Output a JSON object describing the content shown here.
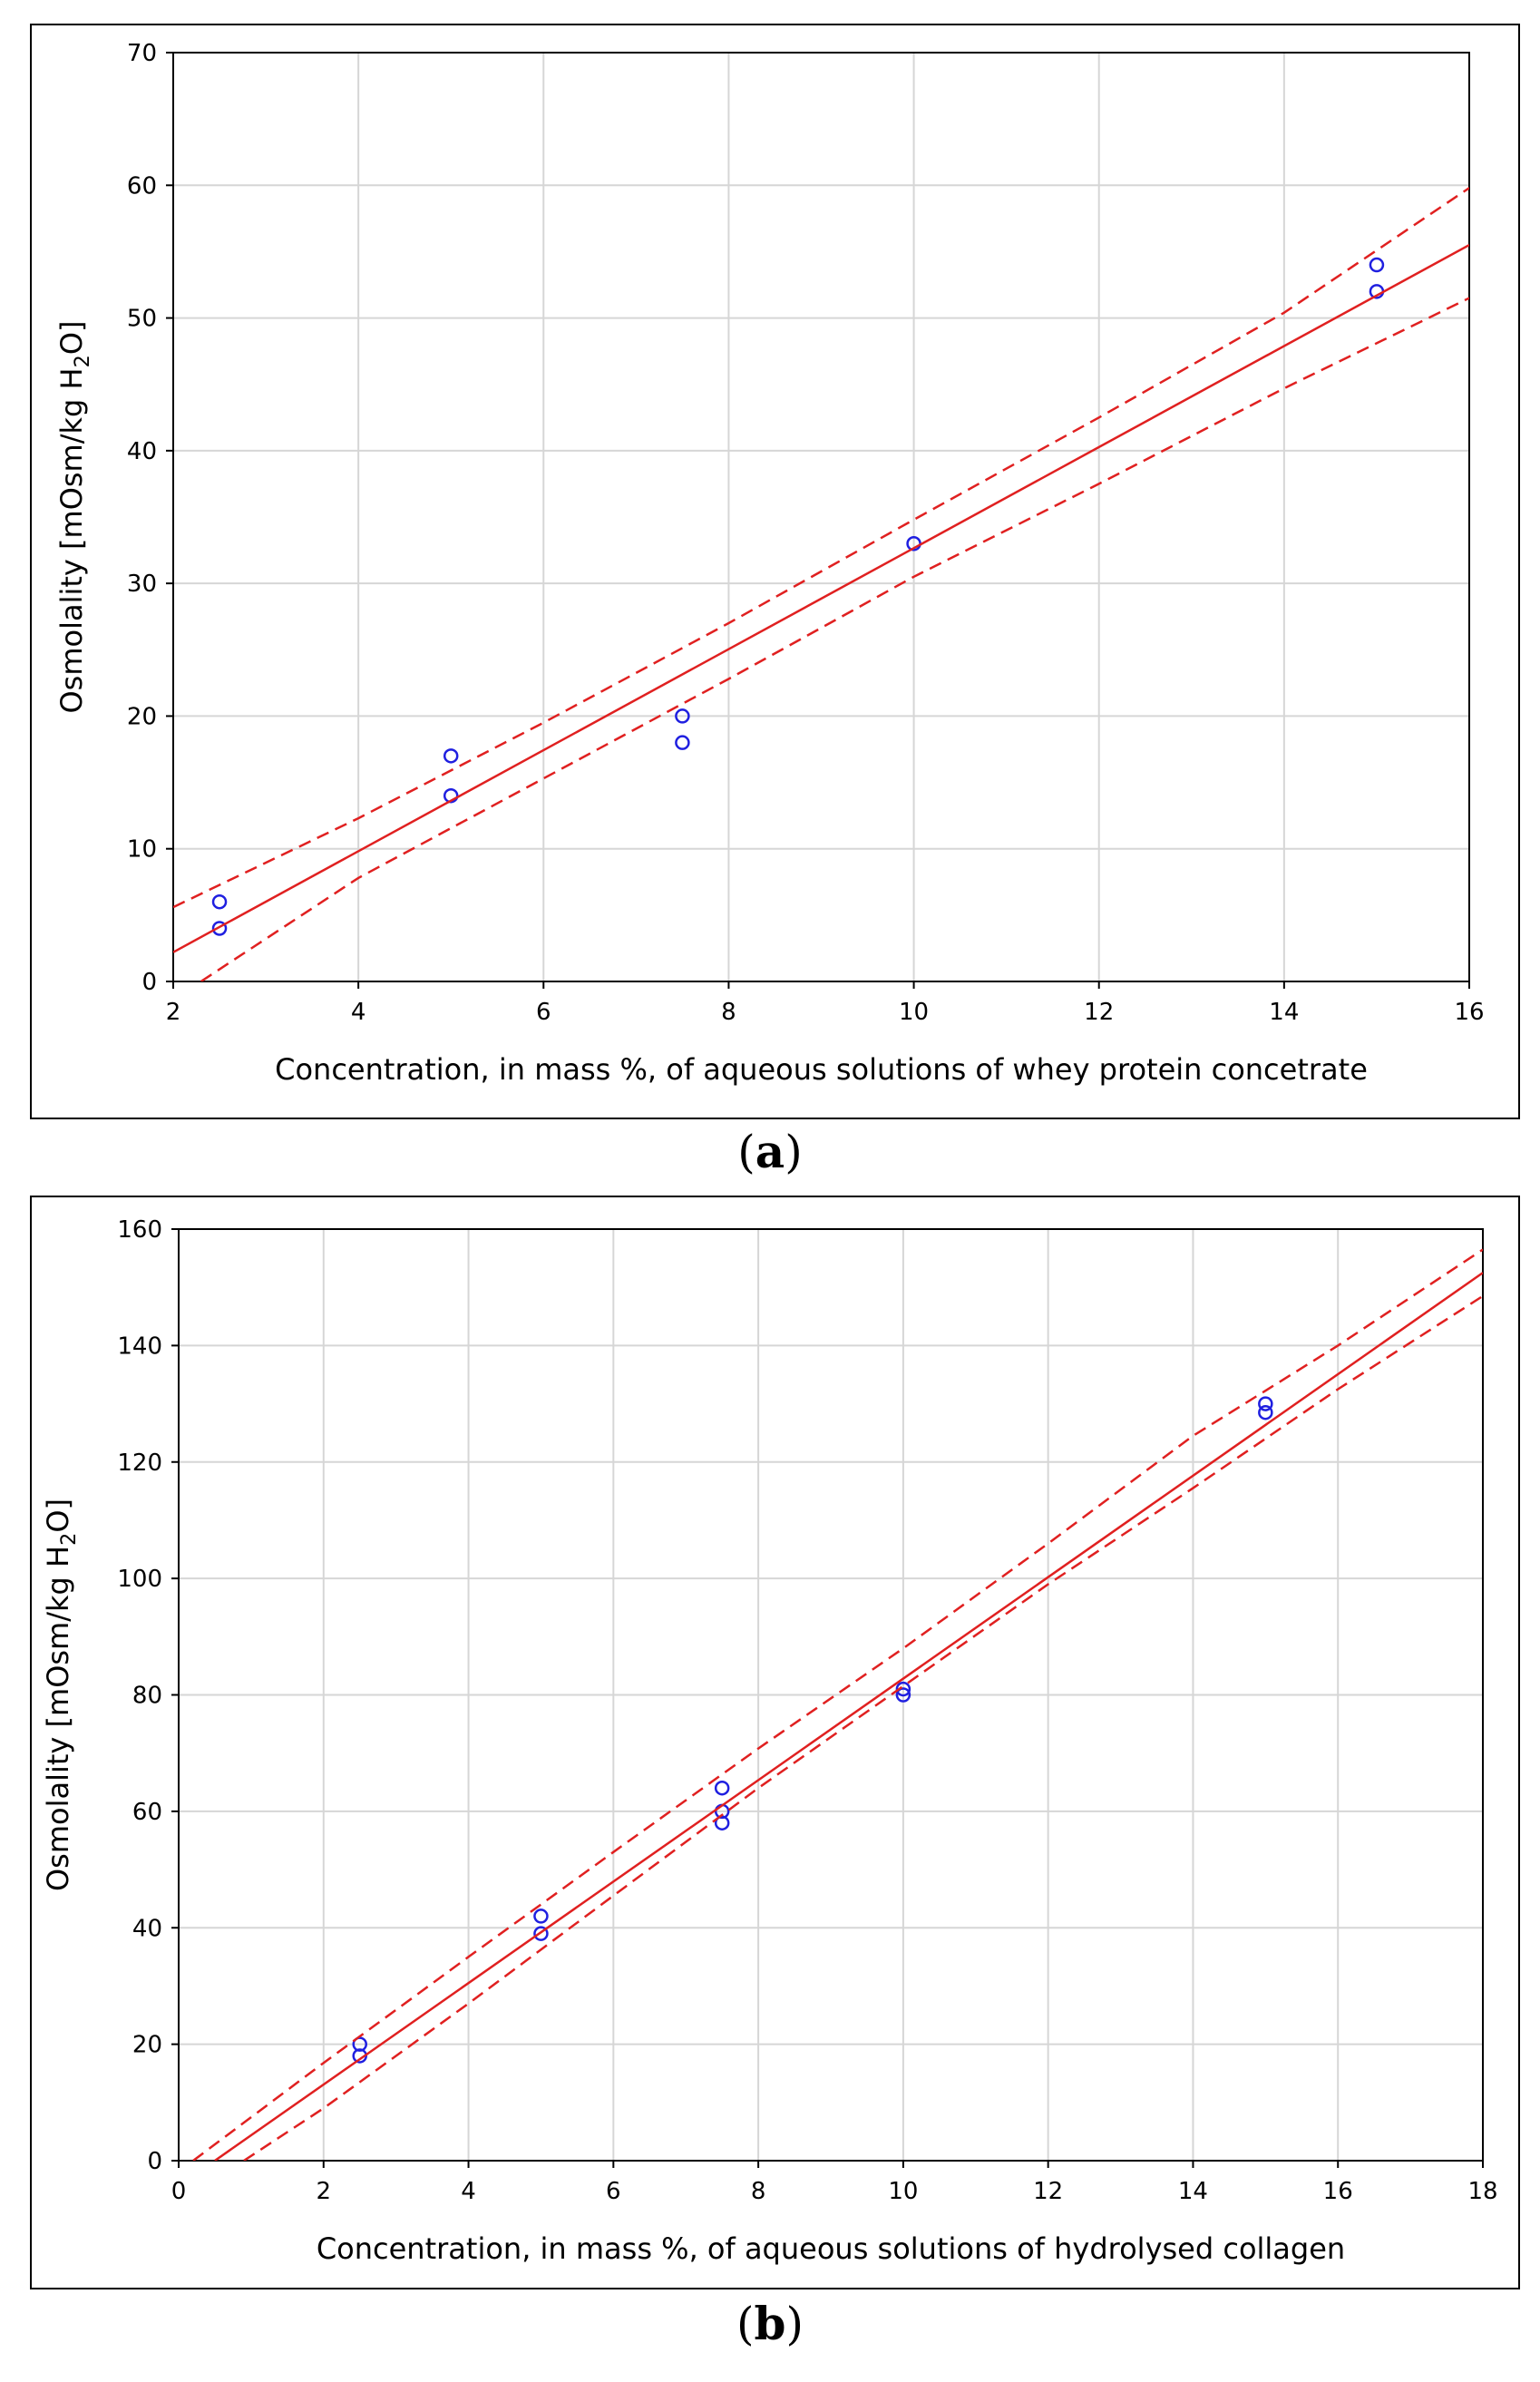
{
  "chart_data": [
    {
      "id": "a",
      "type": "scatter",
      "panel_label": "a",
      "xlabel": "Concentration, in mass %, of aqueous solutions of whey protein concetrate",
      "ylabel_main": "Osmolality [mOsm/kg H",
      "ylabel_sub": "2",
      "ylabel_tail": "O]",
      "xlim": [
        2,
        16
      ],
      "ylim": [
        0,
        70
      ],
      "xticks": [
        2,
        4,
        6,
        8,
        10,
        12,
        14,
        16
      ],
      "yticks": [
        0,
        10,
        20,
        30,
        40,
        50,
        60,
        70
      ],
      "grid": true,
      "series": [
        {
          "name": "Measured osmolality",
          "kind": "points",
          "color": "#1f1fe0",
          "x": [
            2.5,
            2.5,
            5,
            5,
            7.5,
            7.5,
            10,
            15,
            15
          ],
          "y": [
            6,
            4,
            17,
            14,
            20,
            18,
            33,
            54,
            52
          ]
        },
        {
          "name": "Linear fit",
          "kind": "line",
          "color": "#e02020",
          "x": [
            2,
            16
          ],
          "y": [
            2.2,
            55.5
          ]
        },
        {
          "name": "Upper confidence band",
          "kind": "dashed",
          "color": "#e02020",
          "x": [
            2,
            4,
            6,
            8,
            10,
            12,
            14,
            16
          ],
          "y": [
            5.6,
            12.3,
            19.5,
            27.0,
            34.8,
            42.5,
            50.4,
            59.8
          ]
        },
        {
          "name": "Lower confidence band",
          "kind": "dashed",
          "color": "#e02020",
          "x": [
            2.3,
            4,
            6,
            8,
            10,
            12,
            14,
            16
          ],
          "y": [
            0,
            7.8,
            15.3,
            22.8,
            30.5,
            37.5,
            44.7,
            51.5
          ]
        }
      ]
    },
    {
      "id": "b",
      "type": "scatter",
      "panel_label": "b",
      "xlabel": "Concentration, in mass %, of aqueous solutions of hydrolysed collagen",
      "ylabel_main": "Osmolality [mOsm/kg H",
      "ylabel_sub": "2",
      "ylabel_tail": "O]",
      "xlim": [
        0,
        18
      ],
      "ylim": [
        0,
        160
      ],
      "xticks": [
        0,
        2,
        4,
        6,
        8,
        10,
        12,
        14,
        16,
        18
      ],
      "yticks": [
        0,
        20,
        40,
        60,
        80,
        100,
        120,
        140,
        160
      ],
      "grid": true,
      "series": [
        {
          "name": "Measured osmolality",
          "kind": "points",
          "color": "#1f1fe0",
          "x": [
            2.5,
            2.5,
            5,
            5,
            7.5,
            7.5,
            7.5,
            10,
            10,
            15,
            15
          ],
          "y": [
            20,
            18,
            42,
            39,
            64,
            60,
            58,
            81,
            80,
            130,
            128.5
          ]
        },
        {
          "name": "Linear fit",
          "kind": "line",
          "color": "#e02020",
          "x": [
            0.5,
            18
          ],
          "y": [
            0,
            152.5
          ]
        },
        {
          "name": "Upper confidence band",
          "kind": "dashed",
          "color": "#e02020",
          "x": [
            0.2,
            2,
            4,
            6,
            8,
            10,
            12,
            14,
            16,
            18
          ],
          "y": [
            0,
            16.8,
            35.0,
            53.0,
            70.8,
            88.0,
            106.0,
            124.5,
            140.0,
            156.5
          ]
        },
        {
          "name": "Lower confidence band",
          "kind": "dashed",
          "color": "#e02020",
          "x": [
            0.9,
            2,
            4,
            6,
            8,
            10,
            12,
            14,
            16,
            18
          ],
          "y": [
            0,
            9.0,
            27.0,
            45.5,
            64.0,
            81.5,
            99.0,
            115.5,
            132.5,
            148.5
          ]
        }
      ]
    }
  ]
}
